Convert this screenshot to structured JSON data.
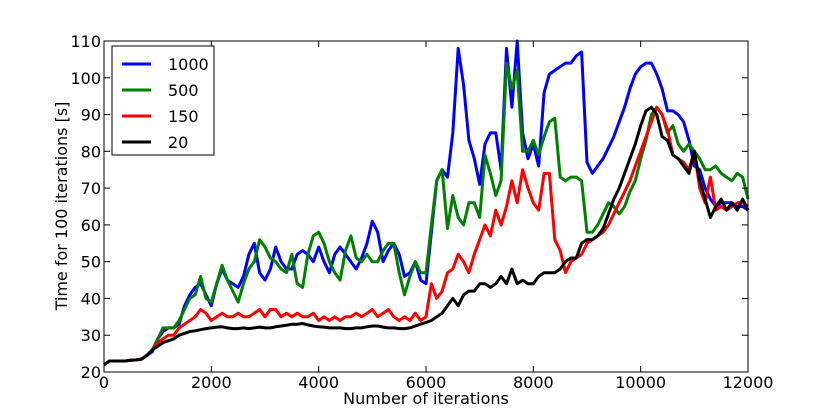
{
  "chart_data": {
    "type": "line",
    "xlabel": "Number of iterations",
    "ylabel": "Time for 100 iterations [s]",
    "xlim": [
      0,
      12000
    ],
    "ylim": [
      20,
      110
    ],
    "xticks": [
      "0",
      "2000",
      "4000",
      "6000",
      "8000",
      "10000",
      "12000"
    ],
    "yticks": [
      "20",
      "30",
      "40",
      "50",
      "60",
      "70",
      "80",
      "90",
      "100",
      "110"
    ],
    "grid": false,
    "legend_position": "top-left",
    "series": [
      {
        "name": "1000",
        "color": "#0000ff",
        "x": [
          0,
          100,
          200,
          300,
          400,
          500,
          600,
          700,
          800,
          900,
          1000,
          1100,
          1200,
          1300,
          1400,
          1500,
          1600,
          1700,
          1800,
          1900,
          2000,
          2100,
          2200,
          2300,
          2400,
          2500,
          2600,
          2700,
          2800,
          2900,
          3000,
          3100,
          3200,
          3300,
          3400,
          3500,
          3600,
          3700,
          3800,
          3900,
          4000,
          4100,
          4200,
          4300,
          4400,
          4500,
          4600,
          4700,
          4800,
          4900,
          5000,
          5100,
          5200,
          5300,
          5400,
          5500,
          5600,
          5700,
          5800,
          5900,
          6000,
          6100,
          6200,
          6300,
          6400,
          6500,
          6600,
          6700,
          6800,
          6900,
          7000,
          7100,
          7200,
          7300,
          7400,
          7500,
          7600,
          7700,
          7800,
          7900,
          8000,
          8100,
          8200,
          8300,
          8400,
          8500,
          8600,
          8700,
          8800,
          8900,
          9000,
          9100,
          9200,
          9300,
          9400,
          9500,
          9600,
          9700,
          9800,
          9900,
          10000,
          10100,
          10200,
          10300,
          10400,
          10500,
          10600,
          10700,
          10800,
          10900,
          11000,
          11100,
          11200,
          11300,
          11400,
          11500,
          11600,
          11700,
          11800,
          11900,
          12000
        ],
        "y": [
          22,
          23,
          23,
          23,
          23,
          23.2,
          23.3,
          23.5,
          24.5,
          25.5,
          29,
          31,
          32,
          32,
          33,
          38,
          41,
          43,
          44,
          41,
          38,
          44,
          48,
          45,
          44,
          43,
          46,
          52,
          55,
          47,
          45,
          48,
          54,
          50,
          48,
          48,
          52,
          53,
          52,
          50,
          54,
          50,
          47,
          52,
          54,
          52,
          50,
          48,
          51,
          55,
          61,
          58,
          50,
          53,
          55,
          52,
          46,
          47,
          50,
          45,
          44,
          58,
          72,
          75,
          73,
          85,
          108,
          98,
          83,
          78,
          71,
          82,
          85,
          85,
          75,
          108,
          92,
          110,
          85,
          78,
          82,
          76,
          96,
          101,
          102,
          103,
          104,
          104,
          106,
          107,
          77,
          74,
          76,
          78,
          81,
          84,
          88,
          92,
          97,
          101,
          103,
          104,
          104,
          101,
          97,
          91,
          91,
          90,
          88,
          83,
          76,
          75,
          70,
          67,
          65,
          66,
          66,
          66,
          65,
          65,
          64
        ]
      },
      {
        "name": "500",
        "color": "#008000",
        "x": [
          0,
          100,
          200,
          300,
          400,
          500,
          600,
          700,
          800,
          900,
          1000,
          1100,
          1200,
          1300,
          1400,
          1500,
          1600,
          1700,
          1800,
          1900,
          2000,
          2100,
          2200,
          2300,
          2400,
          2500,
          2600,
          2700,
          2800,
          2900,
          3000,
          3100,
          3200,
          3300,
          3400,
          3500,
          3600,
          3700,
          3800,
          3900,
          4000,
          4100,
          4200,
          4300,
          4400,
          4500,
          4600,
          4700,
          4800,
          4900,
          5000,
          5100,
          5200,
          5300,
          5400,
          5500,
          5600,
          5700,
          5800,
          5900,
          6000,
          6100,
          6200,
          6300,
          6400,
          6500,
          6600,
          6700,
          6800,
          6900,
          7000,
          7100,
          7200,
          7300,
          7400,
          7500,
          7600,
          7700,
          7800,
          7900,
          8000,
          8100,
          8200,
          8300,
          8400,
          8500,
          8600,
          8700,
          8800,
          8900,
          9000,
          9100,
          9200,
          9300,
          9400,
          9500,
          9600,
          9700,
          9800,
          9900,
          10000,
          10100,
          10200,
          10300,
          10400,
          10500,
          10600,
          10700,
          10800,
          10900,
          11000,
          11100,
          11200,
          11300,
          11400,
          11500,
          11600,
          11700,
          11800,
          11900,
          12000
        ],
        "y": [
          22,
          23,
          23,
          23,
          23,
          23.2,
          23.3,
          23.5,
          24.5,
          26,
          29,
          32,
          32,
          32,
          34,
          37,
          40,
          41,
          46,
          40,
          39,
          44,
          49,
          45,
          42,
          39,
          44,
          48,
          50,
          56,
          54,
          51,
          50,
          48,
          47,
          52,
          44,
          43,
          52,
          57,
          58,
          55,
          50,
          47,
          45,
          53,
          57,
          51,
          50,
          52,
          50,
          50,
          53,
          55,
          55,
          47,
          41,
          46,
          50,
          47,
          47,
          60,
          72,
          75,
          59,
          68,
          62,
          60,
          66,
          66,
          62,
          79,
          74,
          68,
          72,
          104,
          97,
          102,
          80,
          80,
          83,
          79,
          84,
          88,
          89,
          73,
          72,
          73,
          73,
          72,
          58,
          58,
          60,
          63,
          66,
          65,
          63,
          65,
          69,
          72,
          78,
          83,
          90,
          92,
          90,
          85,
          87,
          82,
          80,
          82,
          80,
          78,
          75,
          75,
          76,
          74,
          73,
          72,
          74,
          73,
          67
        ]
      },
      {
        "name": "150",
        "color": "#ff0000",
        "x": [
          0,
          100,
          200,
          300,
          400,
          500,
          600,
          700,
          800,
          900,
          1000,
          1100,
          1200,
          1300,
          1400,
          1500,
          1600,
          1700,
          1800,
          1900,
          2000,
          2100,
          2200,
          2300,
          2400,
          2500,
          2600,
          2700,
          2800,
          2900,
          3000,
          3100,
          3200,
          3300,
          3400,
          3500,
          3600,
          3700,
          3800,
          3900,
          4000,
          4100,
          4200,
          4300,
          4400,
          4500,
          4600,
          4700,
          4800,
          4900,
          5000,
          5100,
          5200,
          5300,
          5400,
          5500,
          5600,
          5700,
          5800,
          5900,
          6000,
          6100,
          6200,
          6300,
          6400,
          6500,
          6600,
          6700,
          6800,
          6900,
          7000,
          7100,
          7200,
          7300,
          7400,
          7500,
          7600,
          7700,
          7800,
          7900,
          8000,
          8100,
          8200,
          8300,
          8400,
          8500,
          8600,
          8700,
          8800,
          8900,
          9000,
          9100,
          9200,
          9300,
          9400,
          9500,
          9600,
          9700,
          9800,
          9900,
          10000,
          10100,
          10200,
          10300,
          10400,
          10500,
          10600,
          10700,
          10800,
          10900,
          11000,
          11100,
          11200,
          11300,
          11400,
          11500,
          11600,
          11700,
          11800,
          11900,
          12000
        ],
        "y": [
          22,
          23,
          23,
          23,
          23,
          23.2,
          23.3,
          23.5,
          24.5,
          26,
          28,
          29,
          30,
          30,
          32,
          33,
          34,
          35,
          37,
          36,
          34,
          35,
          36,
          35,
          35,
          36,
          35,
          35,
          36,
          37,
          35,
          37,
          37,
          35,
          36,
          35,
          36,
          35,
          35,
          36,
          34,
          35,
          34,
          35,
          34,
          35,
          35,
          36,
          35,
          36,
          37,
          35,
          36,
          37,
          35,
          34,
          35,
          34,
          36,
          34,
          35,
          44,
          40,
          42,
          47,
          48,
          52,
          50,
          47,
          52,
          56,
          60,
          57,
          64,
          60,
          65,
          72,
          66,
          75,
          70,
          66,
          64,
          74,
          74,
          56,
          53,
          47,
          50,
          51,
          52,
          55,
          56,
          57,
          58,
          60,
          63,
          66,
          69,
          72,
          76,
          80,
          84,
          88,
          92,
          90,
          86,
          79,
          78,
          77,
          75,
          80,
          70,
          66,
          73,
          64,
          65,
          64,
          65,
          66,
          66,
          65
        ]
      },
      {
        "name": "20",
        "color": "#000000",
        "x": [
          0,
          100,
          200,
          300,
          400,
          500,
          600,
          700,
          800,
          900,
          1000,
          1100,
          1200,
          1300,
          1400,
          1500,
          1600,
          1700,
          1800,
          1900,
          2000,
          2100,
          2200,
          2300,
          2400,
          2500,
          2600,
          2700,
          2800,
          2900,
          3000,
          3100,
          3200,
          3300,
          3400,
          3500,
          3600,
          3700,
          3800,
          3900,
          4000,
          4100,
          4200,
          4300,
          4400,
          4500,
          4600,
          4700,
          4800,
          4900,
          5000,
          5100,
          5200,
          5300,
          5400,
          5500,
          5600,
          5700,
          5800,
          5900,
          6000,
          6100,
          6200,
          6300,
          6400,
          6500,
          6600,
          6700,
          6800,
          6900,
          7000,
          7100,
          7200,
          7300,
          7400,
          7500,
          7600,
          7700,
          7800,
          7900,
          8000,
          8100,
          8200,
          8300,
          8400,
          8500,
          8600,
          8700,
          8800,
          8900,
          9000,
          9100,
          9200,
          9300,
          9400,
          9500,
          9600,
          9700,
          9800,
          9900,
          10000,
          10100,
          10200,
          10300,
          10400,
          10500,
          10600,
          10700,
          10800,
          10900,
          11000,
          11100,
          11200,
          11300,
          11400,
          11500,
          11600,
          11700,
          11800,
          11900,
          12000
        ],
        "y": [
          22,
          23,
          23,
          23,
          23,
          23.2,
          23.3,
          23.5,
          24.5,
          26,
          27,
          28,
          28.5,
          29,
          30,
          30.5,
          31,
          31.2,
          31.5,
          31.8,
          32,
          32.2,
          32.3,
          32,
          31.8,
          31.8,
          32,
          31.8,
          32,
          32.2,
          32,
          32,
          32.3,
          32.5,
          32.7,
          33,
          33,
          33.2,
          32.8,
          32.5,
          32.3,
          32.2,
          32,
          32,
          32,
          31.8,
          31.8,
          32,
          32,
          32.3,
          32.5,
          32.5,
          32.2,
          32,
          32,
          31.8,
          31.8,
          32,
          32.5,
          33,
          33.5,
          34,
          35,
          36,
          38,
          40,
          38,
          41,
          42,
          42,
          44,
          44,
          43,
          44,
          46,
          44,
          48,
          44,
          45,
          44,
          44,
          46,
          47,
          47,
          47,
          48,
          50,
          51,
          51,
          55,
          56,
          56,
          57,
          59,
          63,
          67,
          70,
          74,
          78,
          82,
          87,
          91,
          92,
          90,
          84,
          83,
          79,
          78,
          76,
          74,
          80,
          72,
          67,
          62,
          65,
          67,
          64,
          66,
          64,
          67,
          64
        ]
      }
    ]
  }
}
